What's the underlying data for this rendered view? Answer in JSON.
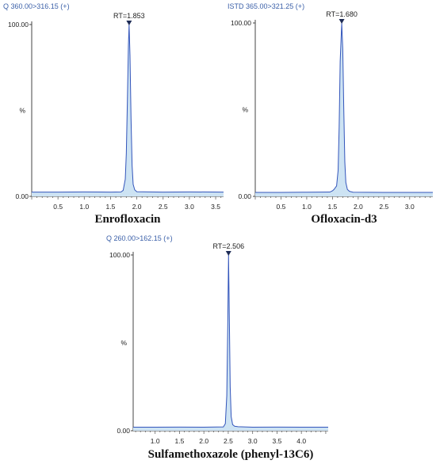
{
  "chart_data": [
    {
      "type": "line",
      "header": "Q 360.00>316.15 (+)",
      "title": "Enrofloxacin",
      "ylabel": "%",
      "y_ticks": [
        "100.00",
        "0.00"
      ],
      "x_ticks": [
        "0.5",
        "1.0",
        "1.5",
        "2.0",
        "2.5",
        "3.0",
        "3.5"
      ],
      "xlim": [
        0.0,
        3.65
      ],
      "ylim": [
        0,
        100
      ],
      "peak_label": "RT=1.853",
      "peak_rt": 1.853,
      "x": [
        0.0,
        0.5,
        1.0,
        1.5,
        1.7,
        1.74,
        1.78,
        1.8,
        1.82,
        1.84,
        1.853,
        1.87,
        1.89,
        1.91,
        1.93,
        1.96,
        2.0,
        2.5,
        3.0,
        3.65
      ],
      "y": [
        2.5,
        2.5,
        2.6,
        2.5,
        2.6,
        3.5,
        10,
        25,
        55,
        88,
        100,
        82,
        45,
        18,
        7,
        3.8,
        2.7,
        2.5,
        2.6,
        2.5
      ],
      "colors": {
        "fill": "#cde3f3",
        "line": "#3355bb"
      }
    },
    {
      "type": "line",
      "header": "ISTD 365.00>321.25 (+)",
      "title": "Ofloxacin-d3",
      "ylabel": "%",
      "y_ticks": [
        "100.00",
        "0.00"
      ],
      "x_ticks": [
        "0.5",
        "1.0",
        "1.5",
        "2.0",
        "2.5",
        "3.0"
      ],
      "xlim": [
        0.0,
        3.45
      ],
      "ylim": [
        0,
        100
      ],
      "peak_label": "RT=1.680",
      "peak_rt": 1.68,
      "x": [
        0.0,
        0.5,
        1.0,
        1.45,
        1.5,
        1.53,
        1.58,
        1.61,
        1.63,
        1.65,
        1.68,
        1.7,
        1.72,
        1.74,
        1.76,
        1.79,
        1.83,
        1.9,
        2.5,
        3.45
      ],
      "y": [
        2.3,
        2.3,
        2.4,
        2.5,
        3.2,
        4.0,
        6,
        15,
        40,
        78,
        100,
        85,
        50,
        20,
        8,
        4,
        2.9,
        2.4,
        2.3,
        2.3
      ],
      "colors": {
        "fill": "#cde3f3",
        "line": "#3355bb"
      }
    },
    {
      "type": "line",
      "header": "Q 260.00>162.15 (+)",
      "title": "Sulfamethoxazole (phenyl-13C6)",
      "ylabel": "%",
      "y_ticks": [
        "100.00",
        "0.00"
      ],
      "x_ticks": [
        "1.0",
        "1.5",
        "2.0",
        "2.5",
        "3.0",
        "3.5",
        "4.0"
      ],
      "xlim": [
        0.55,
        4.55
      ],
      "ylim": [
        0,
        100
      ],
      "peak_label": "RT=2.506",
      "peak_rt": 2.506,
      "x": [
        0.55,
        1.0,
        1.5,
        2.0,
        2.4,
        2.44,
        2.47,
        2.49,
        2.506,
        2.52,
        2.54,
        2.56,
        2.59,
        2.63,
        2.7,
        3.0,
        3.5,
        4.0,
        4.55
      ],
      "y": [
        2.0,
        2.0,
        2.1,
        2.0,
        2.2,
        4,
        20,
        60,
        100,
        70,
        25,
        8,
        3.5,
        2.6,
        2.3,
        2.0,
        2.1,
        2.0,
        2.0
      ],
      "colors": {
        "fill": "#cde3f3",
        "line": "#3355bb"
      }
    }
  ]
}
